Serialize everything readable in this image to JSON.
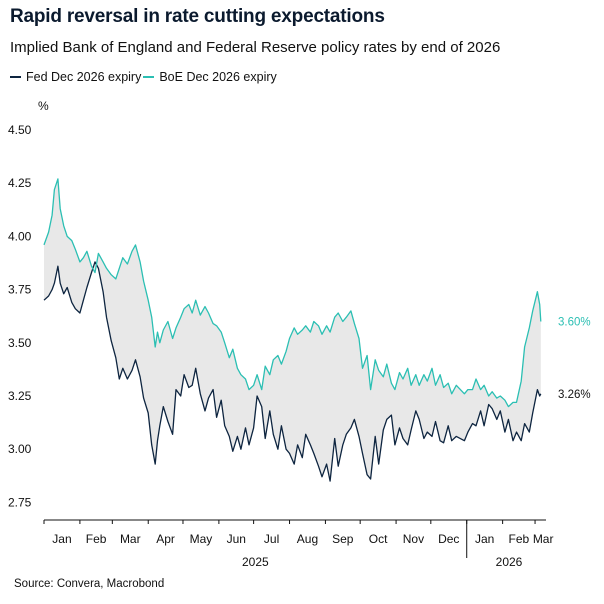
{
  "title": "Rapid reversal in rate cutting expectations",
  "subtitle": "Implied Bank of England and Federal Reserve policy rates by end of 2026",
  "source": "Source: Convera, Macrobond",
  "colors": {
    "fed": "#0e2540",
    "boe": "#2bbfb3",
    "fill": "#e8e8e8"
  },
  "chart_data": {
    "type": "line",
    "ylabel": "%",
    "ylim": [
      2.7,
      4.5
    ],
    "yticks": [
      "4.50",
      "4.25",
      "4.00",
      "3.75",
      "3.50",
      "3.25",
      "3.00",
      "2.75"
    ],
    "month_ticks": [
      "Jan",
      "Feb",
      "Mar",
      "Apr",
      "May",
      "Jun",
      "Jul",
      "Aug",
      "Sep",
      "Oct",
      "Nov",
      "Dec",
      "Jan",
      "Feb",
      "Mar"
    ],
    "year_labels": [
      "2025",
      "2026"
    ],
    "grid": false,
    "legend": "top-left",
    "x_start": "2025-01-01",
    "x_end": "2026-03-07",
    "fill_between": true,
    "series": [
      {
        "name": "Fed Dec 2026 expiry",
        "color": "#0e2540",
        "end_label": "3.26%",
        "x": [
          "2025-01-01",
          "2025-01-05",
          "2025-01-08",
          "2025-01-10",
          "2025-01-13",
          "2025-01-15",
          "2025-01-18",
          "2025-01-21",
          "2025-01-25",
          "2025-01-28",
          "2025-02-01",
          "2025-02-04",
          "2025-02-07",
          "2025-02-11",
          "2025-02-14",
          "2025-02-17",
          "2025-02-21",
          "2025-02-24",
          "2025-02-28",
          "2025-03-04",
          "2025-03-07",
          "2025-03-10",
          "2025-03-14",
          "2025-03-18",
          "2025-03-21",
          "2025-03-25",
          "2025-03-28",
          "2025-04-01",
          "2025-04-04",
          "2025-04-07",
          "2025-04-09",
          "2025-04-11",
          "2025-04-14",
          "2025-04-18",
          "2025-04-22",
          "2025-04-25",
          "2025-04-29",
          "2025-05-02",
          "2025-05-06",
          "2025-05-09",
          "2025-05-12",
          "2025-05-16",
          "2025-05-20",
          "2025-05-23",
          "2025-05-27",
          "2025-05-30",
          "2025-06-03",
          "2025-06-06",
          "2025-06-10",
          "2025-06-13",
          "2025-06-17",
          "2025-06-20",
          "2025-06-24",
          "2025-06-27",
          "2025-07-01",
          "2025-07-04",
          "2025-07-08",
          "2025-07-11",
          "2025-07-15",
          "2025-07-18",
          "2025-07-22",
          "2025-07-25",
          "2025-07-29",
          "2025-08-01",
          "2025-08-05",
          "2025-08-08",
          "2025-08-12",
          "2025-08-15",
          "2025-08-19",
          "2025-08-22",
          "2025-08-26",
          "2025-08-29",
          "2025-09-02",
          "2025-09-05",
          "2025-09-09",
          "2025-09-12",
          "2025-09-16",
          "2025-09-19",
          "2025-09-23",
          "2025-09-26",
          "2025-09-30",
          "2025-10-03",
          "2025-10-07",
          "2025-10-10",
          "2025-10-14",
          "2025-10-17",
          "2025-10-21",
          "2025-10-24",
          "2025-10-28",
          "2025-10-31",
          "2025-11-04",
          "2025-11-07",
          "2025-11-11",
          "2025-11-14",
          "2025-11-18",
          "2025-11-21",
          "2025-11-25",
          "2025-11-28",
          "2025-12-02",
          "2025-12-05",
          "2025-12-09",
          "2025-12-12",
          "2025-12-16",
          "2025-12-19",
          "2025-12-23",
          "2025-12-30",
          "2026-01-02",
          "2026-01-06",
          "2026-01-09",
          "2026-01-13",
          "2026-01-16",
          "2026-01-20",
          "2026-01-23",
          "2026-01-27",
          "2026-01-30",
          "2026-02-03",
          "2026-02-06",
          "2026-02-10",
          "2026-02-13",
          "2026-02-17",
          "2026-02-20",
          "2026-02-24",
          "2026-02-27",
          "2026-03-03",
          "2026-03-05",
          "2026-03-06"
        ],
        "values": [
          3.7,
          3.72,
          3.75,
          3.78,
          3.86,
          3.78,
          3.73,
          3.76,
          3.69,
          3.66,
          3.64,
          3.7,
          3.76,
          3.83,
          3.88,
          3.85,
          3.74,
          3.62,
          3.51,
          3.43,
          3.33,
          3.38,
          3.33,
          3.37,
          3.42,
          3.34,
          3.24,
          3.17,
          3.02,
          2.93,
          3.04,
          3.11,
          3.2,
          3.13,
          3.07,
          3.28,
          3.25,
          3.35,
          3.29,
          3.3,
          3.38,
          3.26,
          3.18,
          3.24,
          3.28,
          3.15,
          3.23,
          3.11,
          3.06,
          2.99,
          3.06,
          3.0,
          3.1,
          3.02,
          3.1,
          3.25,
          3.2,
          3.05,
          3.18,
          3.07,
          3.0,
          3.11,
          3.0,
          2.98,
          2.93,
          3.02,
          2.96,
          3.07,
          3.02,
          2.98,
          2.92,
          2.87,
          2.93,
          2.85,
          3.05,
          2.92,
          3.02,
          3.07,
          3.1,
          3.14,
          3.06,
          2.98,
          2.88,
          2.86,
          3.06,
          2.93,
          3.09,
          3.14,
          3.16,
          3.02,
          3.1,
          3.05,
          3.02,
          3.09,
          3.18,
          3.14,
          3.05,
          3.08,
          3.06,
          3.13,
          3.04,
          3.03,
          3.11,
          3.04,
          3.06,
          3.04,
          3.08,
          3.12,
          3.11,
          3.18,
          3.11,
          3.21,
          3.19,
          3.14,
          3.18,
          3.08,
          3.14,
          3.04,
          3.08,
          3.04,
          3.12,
          3.08,
          3.17,
          3.28,
          3.25,
          3.26
        ]
      },
      {
        "name": "BoE Dec 2026 expiry",
        "color": "#2bbfb3",
        "end_label": "3.60%",
        "x": [
          "2025-01-01",
          "2025-01-05",
          "2025-01-08",
          "2025-01-10",
          "2025-01-13",
          "2025-01-15",
          "2025-01-18",
          "2025-01-21",
          "2025-01-25",
          "2025-01-28",
          "2025-02-01",
          "2025-02-04",
          "2025-02-07",
          "2025-02-11",
          "2025-02-14",
          "2025-02-17",
          "2025-02-21",
          "2025-02-24",
          "2025-02-28",
          "2025-03-04",
          "2025-03-07",
          "2025-03-10",
          "2025-03-14",
          "2025-03-18",
          "2025-03-21",
          "2025-03-25",
          "2025-03-28",
          "2025-04-01",
          "2025-04-04",
          "2025-04-07",
          "2025-04-09",
          "2025-04-11",
          "2025-04-14",
          "2025-04-18",
          "2025-04-22",
          "2025-04-25",
          "2025-04-29",
          "2025-05-02",
          "2025-05-06",
          "2025-05-09",
          "2025-05-12",
          "2025-05-16",
          "2025-05-20",
          "2025-05-23",
          "2025-05-27",
          "2025-05-30",
          "2025-06-03",
          "2025-06-06",
          "2025-06-10",
          "2025-06-13",
          "2025-06-17",
          "2025-06-20",
          "2025-06-24",
          "2025-06-27",
          "2025-07-01",
          "2025-07-04",
          "2025-07-08",
          "2025-07-11",
          "2025-07-15",
          "2025-07-18",
          "2025-07-22",
          "2025-07-25",
          "2025-07-29",
          "2025-08-01",
          "2025-08-05",
          "2025-08-08",
          "2025-08-12",
          "2025-08-15",
          "2025-08-19",
          "2025-08-22",
          "2025-08-26",
          "2025-08-29",
          "2025-09-02",
          "2025-09-05",
          "2025-09-09",
          "2025-09-12",
          "2025-09-16",
          "2025-09-19",
          "2025-09-23",
          "2025-09-26",
          "2025-09-30",
          "2025-10-03",
          "2025-10-07",
          "2025-10-10",
          "2025-10-14",
          "2025-10-17",
          "2025-10-21",
          "2025-10-24",
          "2025-10-28",
          "2025-10-31",
          "2025-11-04",
          "2025-11-07",
          "2025-11-11",
          "2025-11-14",
          "2025-11-18",
          "2025-11-21",
          "2025-11-25",
          "2025-11-28",
          "2025-12-02",
          "2025-12-05",
          "2025-12-09",
          "2025-12-12",
          "2025-12-16",
          "2025-12-19",
          "2025-12-23",
          "2025-12-30",
          "2026-01-02",
          "2026-01-06",
          "2026-01-09",
          "2026-01-13",
          "2026-01-16",
          "2026-01-20",
          "2026-01-23",
          "2026-01-27",
          "2026-01-30",
          "2026-02-03",
          "2026-02-06",
          "2026-02-10",
          "2026-02-13",
          "2026-02-17",
          "2026-02-20",
          "2026-02-24",
          "2026-02-27",
          "2026-03-03",
          "2026-03-05",
          "2026-03-06"
        ],
        "values": [
          3.96,
          4.02,
          4.1,
          4.22,
          4.27,
          4.13,
          4.05,
          4.0,
          3.98,
          3.94,
          3.88,
          3.9,
          3.93,
          3.86,
          3.83,
          3.92,
          3.88,
          3.85,
          3.82,
          3.8,
          3.85,
          3.9,
          3.87,
          3.93,
          3.96,
          3.88,
          3.79,
          3.7,
          3.62,
          3.48,
          3.55,
          3.5,
          3.56,
          3.6,
          3.52,
          3.57,
          3.62,
          3.66,
          3.68,
          3.64,
          3.7,
          3.63,
          3.67,
          3.64,
          3.59,
          3.58,
          3.55,
          3.5,
          3.43,
          3.47,
          3.38,
          3.35,
          3.33,
          3.28,
          3.3,
          3.35,
          3.28,
          3.39,
          3.35,
          3.42,
          3.44,
          3.4,
          3.46,
          3.52,
          3.57,
          3.54,
          3.56,
          3.58,
          3.55,
          3.6,
          3.58,
          3.54,
          3.58,
          3.55,
          3.62,
          3.64,
          3.6,
          3.62,
          3.65,
          3.59,
          3.52,
          3.38,
          3.44,
          3.28,
          3.42,
          3.37,
          3.34,
          3.4,
          3.31,
          3.28,
          3.36,
          3.33,
          3.38,
          3.3,
          3.35,
          3.3,
          3.35,
          3.32,
          3.38,
          3.3,
          3.35,
          3.29,
          3.31,
          3.26,
          3.3,
          3.26,
          3.28,
          3.28,
          3.33,
          3.28,
          3.3,
          3.25,
          3.27,
          3.24,
          3.25,
          3.23,
          3.2,
          3.22,
          3.22,
          3.32,
          3.48,
          3.57,
          3.65,
          3.74,
          3.68,
          3.6
        ]
      }
    ]
  }
}
